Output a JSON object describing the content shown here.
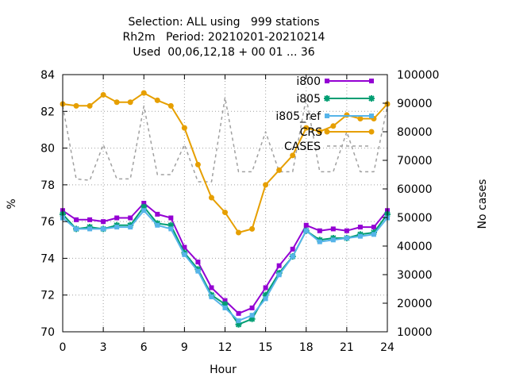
{
  "chart_data": {
    "type": "line",
    "title": [
      "Selection: ALL using   999 stations",
      "Rh2m   Period: 20210201-20210214",
      "Used  00,06,12,18 + 00 01 ... 36"
    ],
    "xlabel": "Hour",
    "ylabel": "%",
    "y2label": "No cases",
    "xlim": [
      0,
      24
    ],
    "ylim": [
      70,
      84
    ],
    "y2lim": [
      10000,
      100000
    ],
    "xticks": [
      0,
      3,
      6,
      9,
      12,
      15,
      18,
      21,
      24
    ],
    "yticks": [
      70,
      72,
      74,
      76,
      78,
      80,
      82,
      84
    ],
    "y2ticks": [
      10000,
      20000,
      30000,
      40000,
      50000,
      60000,
      70000,
      80000,
      90000,
      100000
    ],
    "grid": true,
    "legend_position": "top-right",
    "x": [
      0,
      1,
      2,
      3,
      4,
      5,
      6,
      7,
      8,
      9,
      10,
      11,
      12,
      13,
      14,
      15,
      16,
      17,
      18,
      19,
      20,
      21,
      22,
      23,
      24
    ],
    "series": [
      {
        "name": "i800",
        "axis": "y",
        "color": "#9400d3",
        "marker": "square",
        "values": [
          76.6,
          76.1,
          76.1,
          76.0,
          76.2,
          76.2,
          77.0,
          76.4,
          76.2,
          74.6,
          73.8,
          72.4,
          71.7,
          71.0,
          71.3,
          72.4,
          73.6,
          74.5,
          75.8,
          75.5,
          75.6,
          75.5,
          75.7,
          75.7,
          76.6
        ]
      },
      {
        "name": "i805",
        "axis": "y",
        "color": "#009e73",
        "marker": "star",
        "values": [
          76.4,
          75.6,
          75.7,
          75.6,
          75.8,
          75.8,
          76.8,
          75.9,
          75.8,
          74.3,
          73.4,
          72.0,
          71.5,
          70.4,
          70.7,
          72.0,
          73.2,
          74.1,
          75.5,
          75.0,
          75.1,
          75.1,
          75.3,
          75.4,
          76.4
        ]
      },
      {
        "name": "i805_ref",
        "axis": "y",
        "color": "#56b4e9",
        "marker": "square",
        "values": [
          76.2,
          75.6,
          75.6,
          75.6,
          75.7,
          75.7,
          76.6,
          75.8,
          75.6,
          74.2,
          73.3,
          71.9,
          71.3,
          70.6,
          70.9,
          71.8,
          73.1,
          74.1,
          75.5,
          74.9,
          75.0,
          75.1,
          75.2,
          75.3,
          76.2
        ]
      },
      {
        "name": "CRS",
        "axis": "y",
        "color": "#e69f00",
        "marker": "circle",
        "values": [
          82.4,
          82.3,
          82.3,
          82.9,
          82.5,
          82.5,
          83.0,
          82.6,
          82.3,
          81.1,
          79.1,
          77.3,
          76.5,
          75.4,
          75.6,
          78.0,
          78.8,
          79.6,
          81.1,
          80.9,
          81.2,
          81.8,
          81.6,
          81.6,
          82.4
        ]
      },
      {
        "name": "CASES",
        "axis": "y2",
        "color": "#a0a0a0",
        "dash": "4,4",
        "values": [
          89000,
          63500,
          63000,
          75500,
          63500,
          63500,
          89000,
          65000,
          65000,
          75500,
          62500,
          62500,
          92000,
          66000,
          66000,
          80000,
          66000,
          66000,
          92000,
          66000,
          66000,
          80000,
          66000,
          66000,
          89000
        ]
      }
    ]
  }
}
